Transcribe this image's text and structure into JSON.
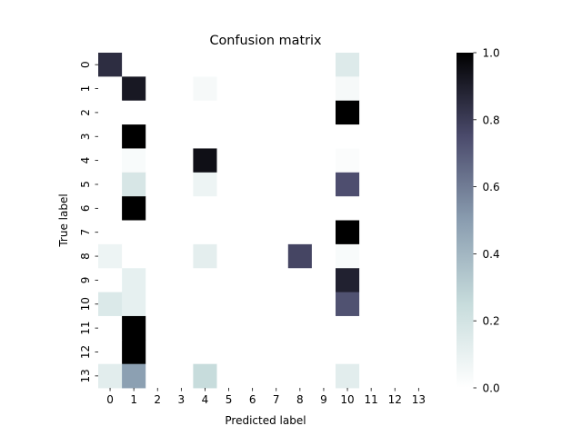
{
  "chart_data": {
    "type": "heatmap",
    "title": "Confusion matrix",
    "xlabel": "Predicted label",
    "ylabel": "True label",
    "x_categories": [
      "0",
      "1",
      "2",
      "3",
      "4",
      "5",
      "6",
      "7",
      "8",
      "9",
      "10",
      "11",
      "12",
      "13"
    ],
    "y_categories": [
      "0",
      "1",
      "2",
      "3",
      "4",
      "5",
      "6",
      "7",
      "8",
      "9",
      "10",
      "11",
      "12",
      "13"
    ],
    "color_range": [
      0.0,
      1.0
    ],
    "colormap": "bone_r",
    "colorbar_ticks": [
      "0.0",
      "0.2",
      "0.4",
      "0.6",
      "0.8",
      "1.0"
    ],
    "grid": false,
    "values": [
      [
        0.85,
        0,
        0,
        0,
        0,
        0,
        0,
        0,
        0,
        0,
        0.15,
        0,
        0,
        0
      ],
      [
        0,
        0.92,
        0,
        0,
        0.04,
        0,
        0,
        0,
        0,
        0,
        0.04,
        0,
        0,
        0
      ],
      [
        0,
        0,
        0,
        0,
        0,
        0,
        0,
        0,
        0,
        0,
        1.0,
        0,
        0,
        0
      ],
      [
        0,
        1.0,
        0,
        0,
        0,
        0,
        0,
        0,
        0,
        0,
        0,
        0,
        0,
        0
      ],
      [
        0,
        0.03,
        0,
        0,
        0.95,
        0,
        0,
        0,
        0,
        0,
        0.02,
        0,
        0,
        0
      ],
      [
        0,
        0.18,
        0,
        0,
        0.08,
        0,
        0,
        0,
        0,
        0,
        0.74,
        0,
        0,
        0
      ],
      [
        0,
        1.0,
        0,
        0,
        0,
        0,
        0,
        0,
        0,
        0,
        0,
        0,
        0,
        0
      ],
      [
        0,
        0,
        0,
        0,
        0,
        0,
        0,
        0,
        0,
        0,
        1.0,
        0,
        0,
        0
      ],
      [
        0.08,
        0,
        0,
        0,
        0.12,
        0,
        0,
        0,
        0.77,
        0,
        0.03,
        0,
        0,
        0
      ],
      [
        0,
        0.11,
        0,
        0,
        0,
        0,
        0,
        0,
        0,
        0,
        0.89,
        0,
        0,
        0
      ],
      [
        0.16,
        0.11,
        0,
        0,
        0,
        0,
        0,
        0,
        0,
        0,
        0.73,
        0,
        0,
        0
      ],
      [
        0,
        1.0,
        0,
        0,
        0,
        0,
        0,
        0,
        0,
        0,
        0,
        0,
        0,
        0
      ],
      [
        0,
        1.0,
        0,
        0,
        0,
        0,
        0,
        0,
        0,
        0,
        0,
        0,
        0,
        0
      ],
      [
        0.13,
        0.49,
        0,
        0,
        0.25,
        0,
        0,
        0,
        0,
        0,
        0.13,
        0,
        0,
        0
      ]
    ]
  }
}
